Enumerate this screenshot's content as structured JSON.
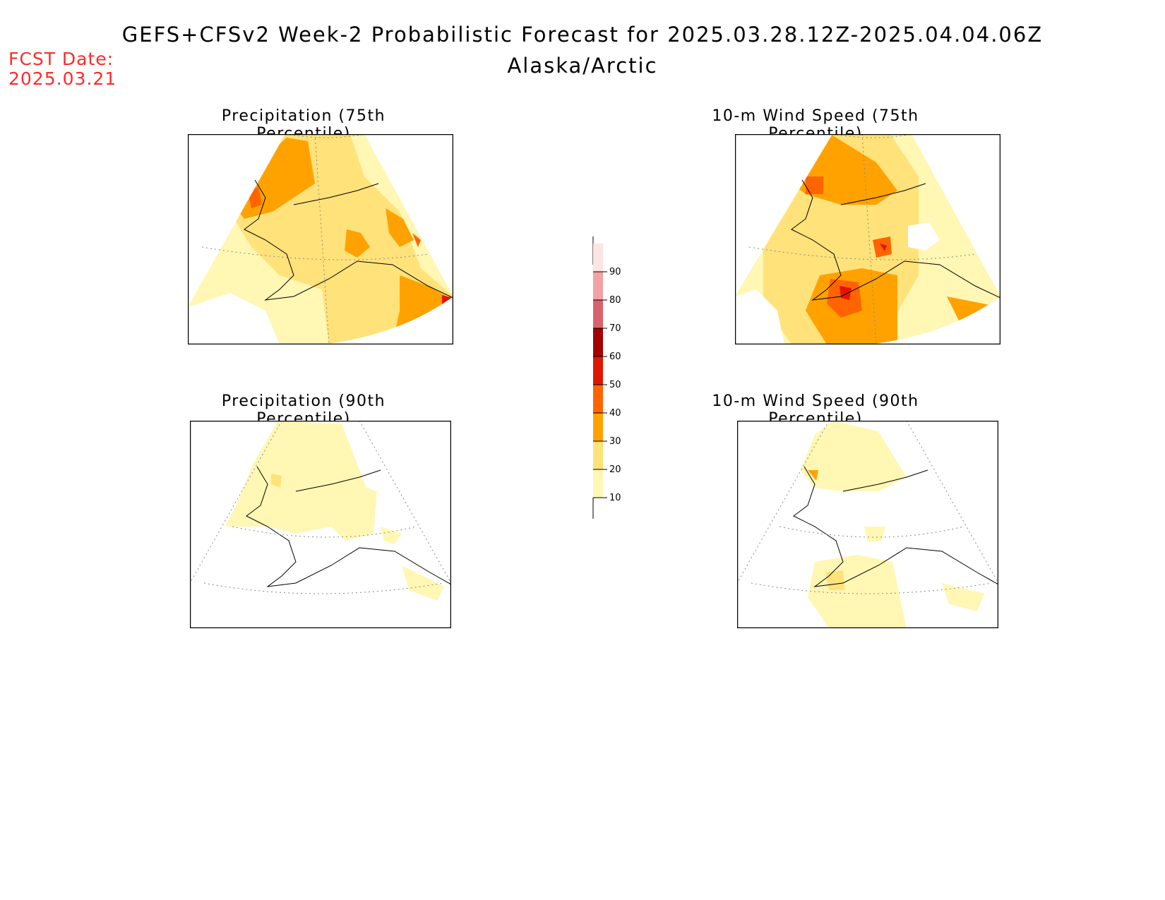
{
  "header": {
    "title": "GEFS+CFSv2 Week-2 Probabilistic Forecast for 2025.03.28.12Z-2025.04.04.06Z",
    "region": "Alaska/Arctic"
  },
  "fcst_date": {
    "label": "FCST Date:",
    "value": "2025.03.21"
  },
  "panels": [
    {
      "id": "precip75",
      "title": "Precipitation (75th Percentile)"
    },
    {
      "id": "wind75",
      "title": "10-m Wind Speed (75th Percentile)"
    },
    {
      "id": "precip90",
      "title": "Precipitation (90th Percentile)"
    },
    {
      "id": "wind90",
      "title": "10-m Wind Speed (90th Percentile)"
    }
  ],
  "colorbar": {
    "levels": [
      {
        "label": "10",
        "color": "#fff7b3"
      },
      {
        "label": "20",
        "color": "#ffe27a"
      },
      {
        "label": "30",
        "color": "#ffa200"
      },
      {
        "label": "40",
        "color": "#ff6400"
      },
      {
        "label": "50",
        "color": "#e01700"
      },
      {
        "label": "60",
        "color": "#a50000"
      },
      {
        "label": "70",
        "color": "#d9636c"
      },
      {
        "label": "80",
        "color": "#f2a2a4"
      },
      {
        "label": "90",
        "color": "#fde3e3"
      }
    ]
  },
  "colors": {
    "c10": "#fff7b3",
    "c20": "#ffe27a",
    "c30": "#ffa200",
    "c40": "#ff6400",
    "c50": "#e01700",
    "fcst_text": "#ff2a2a"
  }
}
